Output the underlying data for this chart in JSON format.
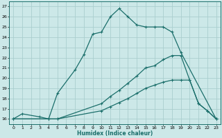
{
  "title": "",
  "xlabel": "Humidex (Indice chaleur)",
  "background_color": "#cce8e8",
  "grid_color": "#aacece",
  "line_color": "#1a6e6a",
  "xlim": [
    -0.5,
    23.5
  ],
  "ylim": [
    15.5,
    27.5
  ],
  "xticks": [
    0,
    1,
    2,
    3,
    4,
    5,
    6,
    7,
    8,
    9,
    10,
    11,
    12,
    13,
    14,
    15,
    16,
    17,
    18,
    19,
    20,
    21,
    22,
    23
  ],
  "yticks": [
    16,
    17,
    18,
    19,
    20,
    21,
    22,
    23,
    24,
    25,
    26,
    27
  ],
  "s1x": [
    0,
    1,
    3,
    4,
    5,
    7,
    8,
    9,
    10,
    11,
    12,
    13,
    14,
    15,
    16,
    17,
    18,
    19,
    23
  ],
  "s1y": [
    16,
    16.5,
    16.2,
    16.0,
    18.5,
    20.8,
    22.3,
    24.3,
    24.5,
    26.0,
    26.8,
    26.0,
    25.2,
    25.0,
    25.0,
    25.0,
    24.5,
    22.5,
    16
  ],
  "s2x": [
    0,
    4,
    5,
    10,
    11,
    12,
    13,
    14,
    15,
    16,
    17,
    18,
    19,
    20,
    21,
    22,
    23
  ],
  "s2y": [
    16,
    16,
    16,
    17.5,
    18.2,
    18.8,
    19.5,
    20.2,
    21.0,
    21.2,
    21.8,
    22.2,
    22.2,
    19.8,
    17.5,
    16.8,
    16.0
  ],
  "s3x": [
    0,
    4,
    5,
    10,
    11,
    12,
    13,
    14,
    15,
    16,
    17,
    18,
    19,
    20,
    21,
    22,
    23
  ],
  "s3y": [
    16,
    16,
    16,
    16.8,
    17.2,
    17.6,
    18.0,
    18.5,
    19.0,
    19.3,
    19.6,
    19.8,
    19.8,
    19.8,
    17.5,
    16.8,
    16.0
  ],
  "markersize": 3,
  "linewidth": 0.9
}
